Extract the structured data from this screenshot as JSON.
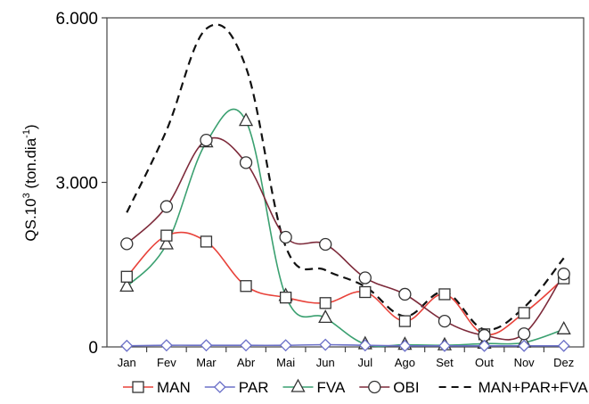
{
  "chart_data": {
    "type": "line",
    "categories": [
      "Jan",
      "Fev",
      "Mar",
      "Abr",
      "Mai",
      "Jun",
      "Jul",
      "Ago",
      "Set",
      "Out",
      "Nov",
      "Dez"
    ],
    "ylabel_main": "QS.10",
    "ylabel_sup3": "3",
    "ylabel_mid": " (ton.dia",
    "ylabel_sup_neg1": "-1",
    "ylabel_end": ")",
    "ylim": [
      0,
      6000
    ],
    "y_ticks": [
      0,
      3000,
      6000
    ],
    "y_tick_labels": [
      "0",
      "3.000",
      "6.000"
    ],
    "legend_position": "bottom",
    "series": [
      {
        "name": "MAN",
        "marker": "square",
        "line_style": "solid",
        "color": "#e8423a",
        "values": [
          1280,
          2030,
          1920,
          1110,
          900,
          800,
          1000,
          470,
          960,
          230,
          620,
          1250
        ]
      },
      {
        "name": "PAR",
        "marker": "diamond",
        "line_style": "solid",
        "color": "#6b70c8",
        "values": [
          20,
          30,
          30,
          30,
          30,
          40,
          30,
          20,
          20,
          20,
          20,
          20
        ]
      },
      {
        "name": "FVA",
        "marker": "triangle",
        "line_style": "solid",
        "color": "#3aa070",
        "values": [
          1100,
          1870,
          3730,
          4120,
          930,
          530,
          50,
          40,
          30,
          60,
          80,
          320
        ]
      },
      {
        "name": "OBI",
        "marker": "circle",
        "line_style": "solid",
        "color": "#7d2a3a",
        "values": [
          1880,
          2560,
          3770,
          3360,
          2000,
          1870,
          1260,
          960,
          470,
          210,
          240,
          1330
        ]
      },
      {
        "name": "MAN+PAR+FVA",
        "marker": "none",
        "line_style": "dashed",
        "color": "#111111",
        "values": [
          2450,
          3950,
          5800,
          5100,
          1830,
          1400,
          1100,
          560,
          1000,
          320,
          720,
          1620
        ]
      }
    ]
  }
}
